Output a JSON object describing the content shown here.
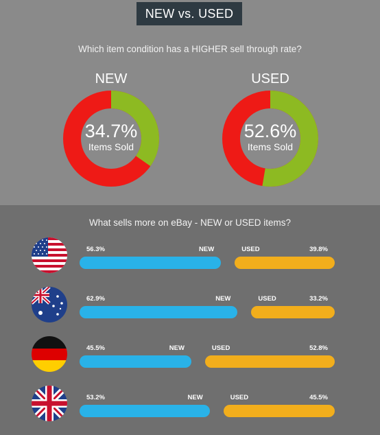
{
  "header": {
    "title": "NEW vs. USED"
  },
  "section1": {
    "question": "Which item condition has a HIGHER sell through rate?",
    "sold_label": "Items Sold"
  },
  "section2": {
    "question": "What sells more on eBay - NEW or USED items?",
    "new_label": "NEW",
    "used_label": "USED"
  },
  "colors": {
    "sold": "#8dba22",
    "unsold": "#ee1a16",
    "new_bar": "#29b2e8",
    "used_bar": "#f2ae1c",
    "header_bg": "#2e3a42"
  },
  "chart_data": [
    {
      "type": "pie",
      "title": "NEW",
      "value_label": "34.7%",
      "values": [
        34.7,
        65.3
      ]
    },
    {
      "type": "pie",
      "title": "USED",
      "value_label": "52.6%",
      "values": [
        52.6,
        47.4
      ]
    },
    {
      "type": "bar",
      "categories": [
        "us-flag-icon",
        "australia-flag-icon",
        "germany-flag-icon",
        "uk-flag-icon"
      ],
      "series": [
        {
          "name": "NEW",
          "values": [
            56.3,
            62.9,
            45.5,
            53.2
          ],
          "labels": [
            "56.3%",
            "62.9%",
            "45.5%",
            "53.2%"
          ]
        },
        {
          "name": "USED",
          "values": [
            39.8,
            33.2,
            52.8,
            45.5
          ],
          "labels": [
            "39.8%",
            "33.2%",
            "52.8%",
            "45.5%"
          ]
        }
      ]
    }
  ]
}
